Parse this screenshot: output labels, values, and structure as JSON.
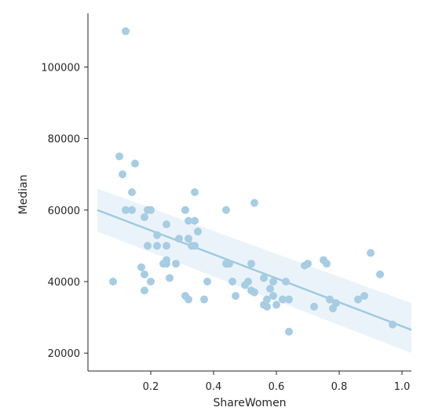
{
  "chart_data": {
    "type": "scatter",
    "title": "",
    "xlabel": "ShareWomen",
    "ylabel": "Median",
    "xlim": [
      0.0,
      1.03
    ],
    "ylim": [
      15000,
      115000
    ],
    "xticks": [
      0.2,
      0.4,
      0.6,
      0.8,
      1.0
    ],
    "xtick_labels": [
      "0.2",
      "0.4",
      "0.6",
      "0.8",
      "1.0"
    ],
    "yticks": [
      20000,
      40000,
      60000,
      80000,
      100000
    ],
    "ytick_labels": [
      "20000",
      "40000",
      "60000",
      "80000",
      "100000"
    ],
    "grid": false,
    "point_color": "#a6cde2",
    "line_color": "#9ecae1",
    "band_color": "#dbe9f5",
    "regression": {
      "x": [
        0.03,
        1.03
      ],
      "y": [
        60000,
        26500
      ],
      "ci_upper": [
        66000,
        34000
      ],
      "ci_lower": [
        54000,
        20000
      ]
    },
    "points": [
      [
        0.12,
        110000
      ],
      [
        0.1,
        75000
      ],
      [
        0.15,
        73000
      ],
      [
        0.11,
        70000
      ],
      [
        0.14,
        65000
      ],
      [
        0.12,
        60000
      ],
      [
        0.14,
        60000
      ],
      [
        0.19,
        60000
      ],
      [
        0.2,
        60000
      ],
      [
        0.18,
        58000
      ],
      [
        0.08,
        40000
      ],
      [
        0.17,
        44000
      ],
      [
        0.18,
        42000
      ],
      [
        0.2,
        40000
      ],
      [
        0.18,
        37500
      ],
      [
        0.19,
        50000
      ],
      [
        0.22,
        53000
      ],
      [
        0.22,
        50000
      ],
      [
        0.25,
        56000
      ],
      [
        0.25,
        50000
      ],
      [
        0.25,
        46000
      ],
      [
        0.24,
        45000
      ],
      [
        0.25,
        45000
      ],
      [
        0.28,
        45000
      ],
      [
        0.26,
        41000
      ],
      [
        0.29,
        52000
      ],
      [
        0.31,
        60000
      ],
      [
        0.32,
        57000
      ],
      [
        0.32,
        52000
      ],
      [
        0.33,
        50000
      ],
      [
        0.34,
        65000
      ],
      [
        0.34,
        57000
      ],
      [
        0.35,
        54000
      ],
      [
        0.34,
        50000
      ],
      [
        0.31,
        36000
      ],
      [
        0.32,
        35000
      ],
      [
        0.37,
        35000
      ],
      [
        0.38,
        40000
      ],
      [
        0.44,
        60000
      ],
      [
        0.44,
        45000
      ],
      [
        0.45,
        45000
      ],
      [
        0.46,
        40000
      ],
      [
        0.47,
        36000
      ],
      [
        0.52,
        45000
      ],
      [
        0.53,
        62000
      ],
      [
        0.51,
        40000
      ],
      [
        0.5,
        39000
      ],
      [
        0.52,
        37500
      ],
      [
        0.53,
        37000
      ],
      [
        0.56,
        41000
      ],
      [
        0.57,
        35000
      ],
      [
        0.56,
        33500
      ],
      [
        0.57,
        33000
      ],
      [
        0.58,
        38000
      ],
      [
        0.59,
        36000
      ],
      [
        0.59,
        40000
      ],
      [
        0.6,
        33500
      ],
      [
        0.62,
        35000
      ],
      [
        0.63,
        40000
      ],
      [
        0.64,
        35000
      ],
      [
        0.64,
        26000
      ],
      [
        0.69,
        44500
      ],
      [
        0.7,
        45000
      ],
      [
        0.72,
        33000
      ],
      [
        0.75,
        46000
      ],
      [
        0.76,
        45000
      ],
      [
        0.77,
        35000
      ],
      [
        0.78,
        32500
      ],
      [
        0.79,
        34000
      ],
      [
        0.86,
        35000
      ],
      [
        0.88,
        36000
      ],
      [
        0.9,
        48000
      ],
      [
        0.93,
        42000
      ],
      [
        0.97,
        28000
      ]
    ]
  }
}
